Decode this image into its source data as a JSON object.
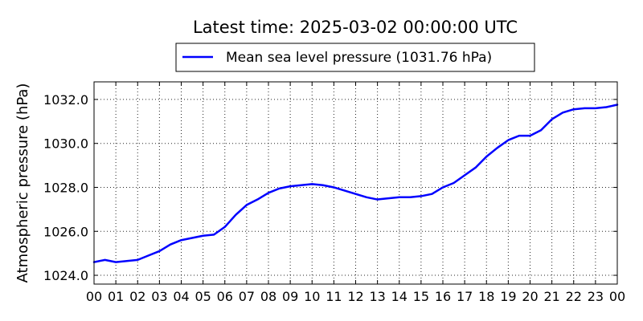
{
  "chart_data": {
    "type": "line",
    "title": "Latest time: 2025-03-02 00:00:00 UTC",
    "xlabel": "",
    "ylabel": "Atmospheric pressure (hPa)",
    "x_tick_labels": [
      "00",
      "01",
      "02",
      "03",
      "04",
      "05",
      "06",
      "07",
      "08",
      "09",
      "10",
      "11",
      "12",
      "13",
      "14",
      "15",
      "16",
      "17",
      "18",
      "19",
      "20",
      "21",
      "22",
      "23",
      "00"
    ],
    "xlim": [
      0,
      24
    ],
    "ylim": [
      1023.6,
      1032.8
    ],
    "y_ticks": [
      "1024.0",
      "1026.0",
      "1028.0",
      "1030.0",
      "1032.0"
    ],
    "grid": true,
    "legend_position": "top-center",
    "series": [
      {
        "name": "Mean sea level pressure (1031.76 hPa)",
        "color": "#0000ff",
        "x": [
          0,
          0.5,
          1,
          1.5,
          2,
          2.5,
          3,
          3.5,
          4,
          4.5,
          5,
          5.5,
          6,
          6.5,
          7,
          7.5,
          8,
          8.5,
          9,
          9.5,
          10,
          10.5,
          11,
          11.5,
          12,
          12.5,
          13,
          13.5,
          14,
          14.5,
          15,
          15.5,
          16,
          16.5,
          17,
          17.5,
          18,
          18.5,
          19,
          19.5,
          20,
          20.5,
          21,
          21.5,
          22,
          22.5,
          23,
          23.5,
          24
        ],
        "y": [
          1024.6,
          1024.7,
          1024.6,
          1024.65,
          1024.7,
          1024.9,
          1025.1,
          1025.4,
          1025.6,
          1025.7,
          1025.8,
          1025.85,
          1026.2,
          1026.75,
          1027.2,
          1027.45,
          1027.75,
          1027.95,
          1028.05,
          1028.1,
          1028.15,
          1028.1,
          1028.0,
          1027.85,
          1027.7,
          1027.55,
          1027.45,
          1027.5,
          1027.55,
          1027.55,
          1027.6,
          1027.7,
          1028.0,
          1028.2,
          1028.55,
          1028.9,
          1029.4,
          1029.8,
          1030.15,
          1030.35,
          1030.35,
          1030.6,
          1031.1,
          1031.4,
          1031.55,
          1031.6,
          1031.6,
          1031.65,
          1031.76
        ]
      }
    ]
  }
}
